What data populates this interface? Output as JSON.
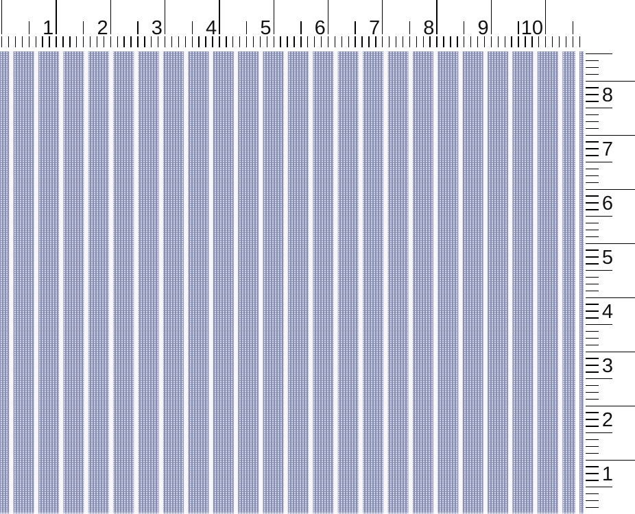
{
  "scene": {
    "type": "scanned fabric swatch with measuring rulers",
    "background": "#ffffff"
  },
  "top_ruler": {
    "unit": "inches",
    "numbers": [
      "1",
      "2",
      "3",
      "4",
      "5",
      "6",
      "7",
      "8",
      "9",
      "10"
    ],
    "divisions_per_inch": 8,
    "tick_color": "#000000",
    "number_color": "#111111"
  },
  "right_ruler": {
    "unit": "inches",
    "numbers": [
      "8",
      "7",
      "6",
      "5",
      "4",
      "3",
      "2",
      "1"
    ],
    "divisions_per_inch": 8,
    "tick_color": "#000000",
    "number_color": "#111111"
  },
  "fabric": {
    "description": "navy-blue and white vertical ticking stripes with pin-dot weave texture",
    "stripe_color": "#4e5384",
    "weave_dot_color": "#a2a8c8",
    "weave_speck_color": "#f4f6ff",
    "gap_color": "#f7f7fa"
  }
}
